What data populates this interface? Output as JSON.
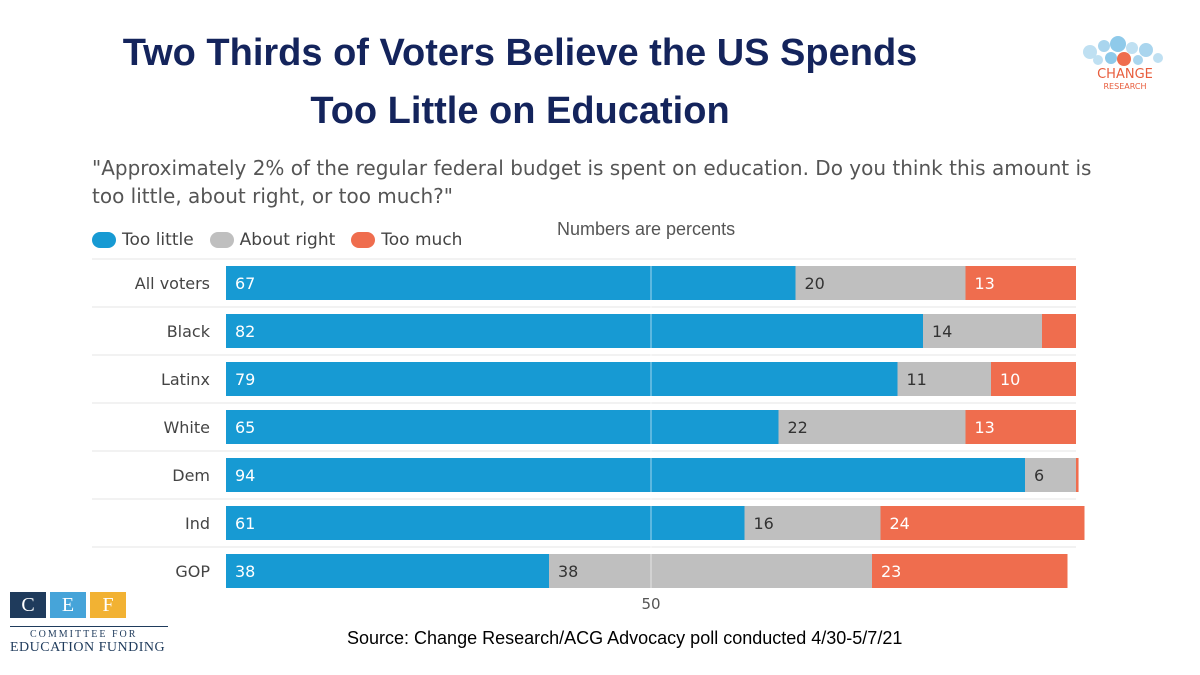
{
  "title": {
    "line1": "Two Thirds of Voters Believe the US Spends",
    "line2": "Too Little on Education"
  },
  "question": "\"Approximately 2% of the regular federal budget is spent on education. Do you think this amount is too little, about right, or too much?\"",
  "note": "Numbers are percents",
  "source": "Source: Change Research/ACG Advocacy poll conducted 4/30-5/7/21",
  "logos": {
    "change_research": {
      "line1": "CHANGE",
      "line2": "RESEARCH"
    },
    "cef": {
      "letters": [
        "C",
        "E",
        "F"
      ],
      "line1": "COMMITTEE FOR",
      "line2": "EDUCATION FUNDING"
    }
  },
  "colors": {
    "too_little": "#179ad3",
    "about_right": "#bfbfbf",
    "too_much": "#ef6d4e",
    "title": "#14245c",
    "cef_c": "#1f3b5c",
    "cef_e": "#46a4d9",
    "cef_f": "#f2b233"
  },
  "chart_data": {
    "type": "bar",
    "orientation": "horizontal",
    "stacked": true,
    "categories": [
      "All voters",
      "Black",
      "Latinx",
      "White",
      "Dem",
      "Ind",
      "GOP"
    ],
    "series": [
      {
        "name": "Too little",
        "values": [
          67,
          82,
          79,
          65,
          94,
          61,
          38
        ],
        "labels": [
          "67",
          "82",
          "79",
          "65",
          "94",
          "61",
          "38"
        ]
      },
      {
        "name": "About right",
        "values": [
          20,
          14,
          11,
          22,
          6,
          16,
          38
        ],
        "labels": [
          "20",
          "14",
          "11",
          "22",
          "6",
          "16",
          "38"
        ]
      },
      {
        "name": "Too much",
        "values": [
          13,
          4,
          10,
          13,
          0.3,
          24,
          23
        ],
        "labels": [
          "13",
          "",
          "10",
          "13",
          "",
          "24",
          "23"
        ]
      }
    ],
    "xlim": [
      0,
      100
    ],
    "reference_line": 50,
    "reference_label": "50",
    "legend": "top-left"
  }
}
